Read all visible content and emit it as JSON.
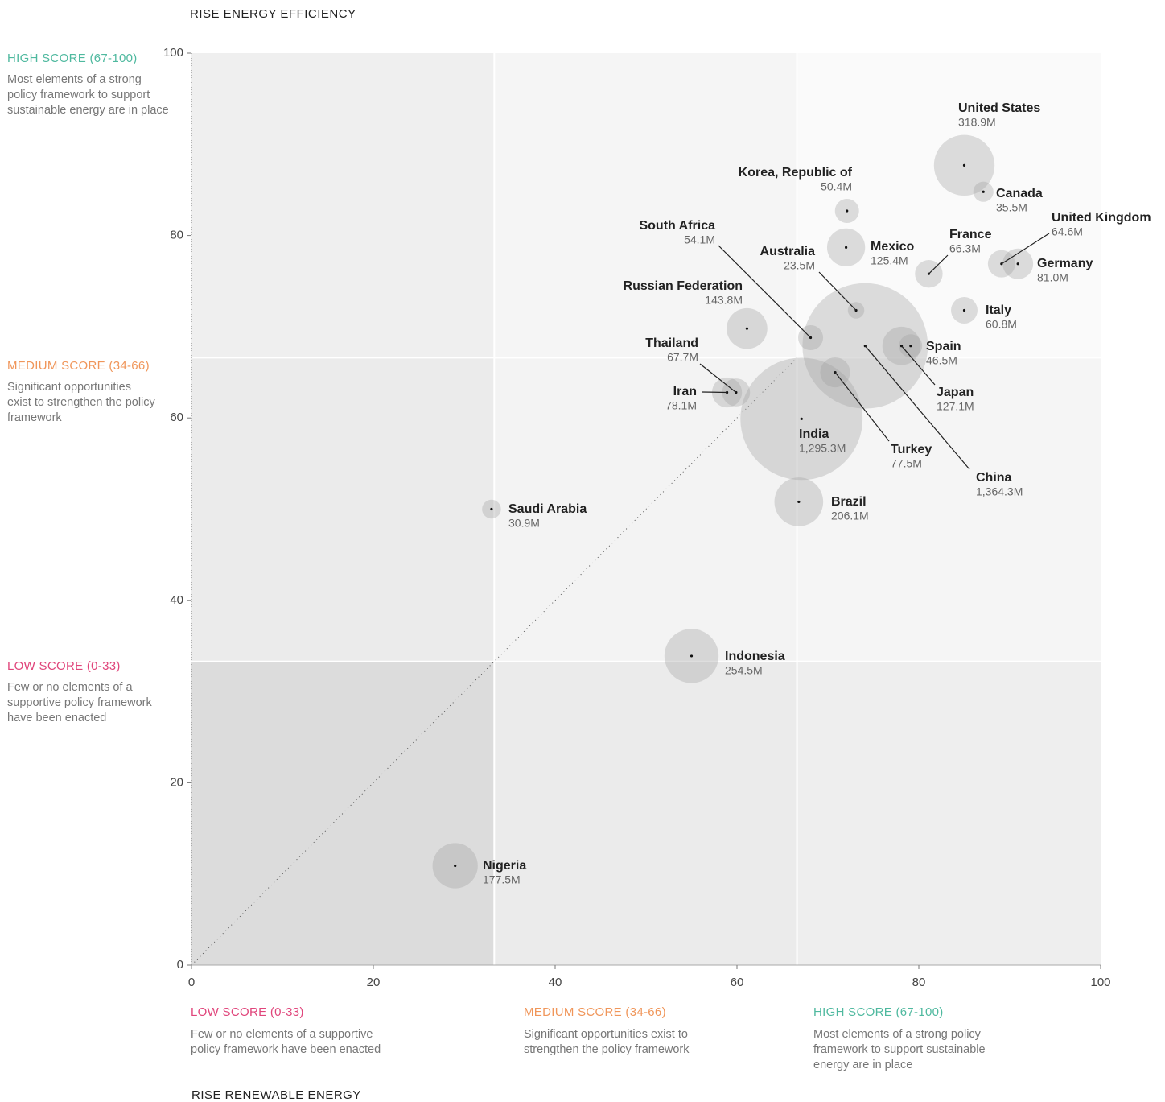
{
  "chart_data": {
    "type": "bubble",
    "y_label": "RISE ENERGY EFFICIENCY",
    "x_label": "RISE RENEWABLE ENERGY",
    "xlim": [
      0,
      100
    ],
    "ylim": [
      0,
      100
    ],
    "xticks": [
      0,
      20,
      40,
      60,
      80,
      100
    ],
    "yticks": [
      0,
      20,
      40,
      60,
      80,
      100
    ],
    "zone_edges": [
      33.3,
      66.6
    ],
    "zones": [
      {
        "title": "LOW SCORE (0-33)",
        "color": "#e0457b",
        "description": [
          "Few or no elements of a",
          "supportive policy framework",
          "have been enacted"
        ],
        "x_description": [
          "Few or no elements of a supportive",
          "policy framework have been enacted"
        ]
      },
      {
        "title": "MEDIUM SCORE (34-66)",
        "color": "#f0965a",
        "description": [
          "Significant opportunities",
          "exist to strengthen the policy",
          "framework"
        ],
        "x_description": [
          "Significant opportunities exist to",
          "strengthen the policy framework"
        ]
      },
      {
        "title": "HIGH SCORE (67-100)",
        "color": "#4fb99f",
        "description": [
          "Most elements of a strong",
          "policy framework to support",
          "sustainable energy are in place"
        ],
        "x_description": [
          "Most elements of a strong policy",
          "framework to support sustainable",
          "energy are in place"
        ]
      }
    ],
    "names": [
      "United States",
      "Canada",
      "Korea, Republic of",
      "Mexico",
      "France",
      "United Kingdom",
      "Germany",
      "Australia",
      "Italy",
      "Russian Federation",
      "South Africa",
      "China",
      "Spain",
      "Japan",
      "Thailand",
      "Iran",
      "Turkey",
      "India",
      "Brazil",
      "Saudi Arabia",
      "Indonesia",
      "Nigeria"
    ],
    "x": [
      85.0,
      87.1,
      72.1,
      72.0,
      81.1,
      89.1,
      90.9,
      73.1,
      85.0,
      61.1,
      68.1,
      74.1,
      79.1,
      78.1,
      59.9,
      58.9,
      70.8,
      67.1,
      66.8,
      33.0,
      55.0,
      29.0
    ],
    "y": [
      87.7,
      84.8,
      82.7,
      78.7,
      75.8,
      76.9,
      76.9,
      71.8,
      71.8,
      69.8,
      68.8,
      67.9,
      67.9,
      67.9,
      62.8,
      62.8,
      65.0,
      59.9,
      50.8,
      50.0,
      33.9,
      10.9
    ],
    "sizes": [
      318.9,
      35.5,
      50.4,
      125.4,
      66.3,
      64.6,
      81.0,
      23.5,
      60.8,
      143.8,
      54.1,
      1364.3,
      46.5,
      127.1,
      67.7,
      78.1,
      77.5,
      1295.3,
      206.1,
      30.9,
      254.5,
      177.5
    ],
    "size_labels": [
      "318.9M",
      "35.5M",
      "50.4M",
      "125.4M",
      "66.3M",
      "64.6M",
      "81.0M",
      "23.5M",
      "60.8M",
      "143.8M",
      "54.1M",
      "1,364.3M",
      "46.5M",
      "127.1M",
      "67.7M",
      "78.1M",
      "77.5M",
      "1,295.3M",
      "206.1M",
      "30.9M",
      "254.5M",
      "177.5M"
    ]
  }
}
